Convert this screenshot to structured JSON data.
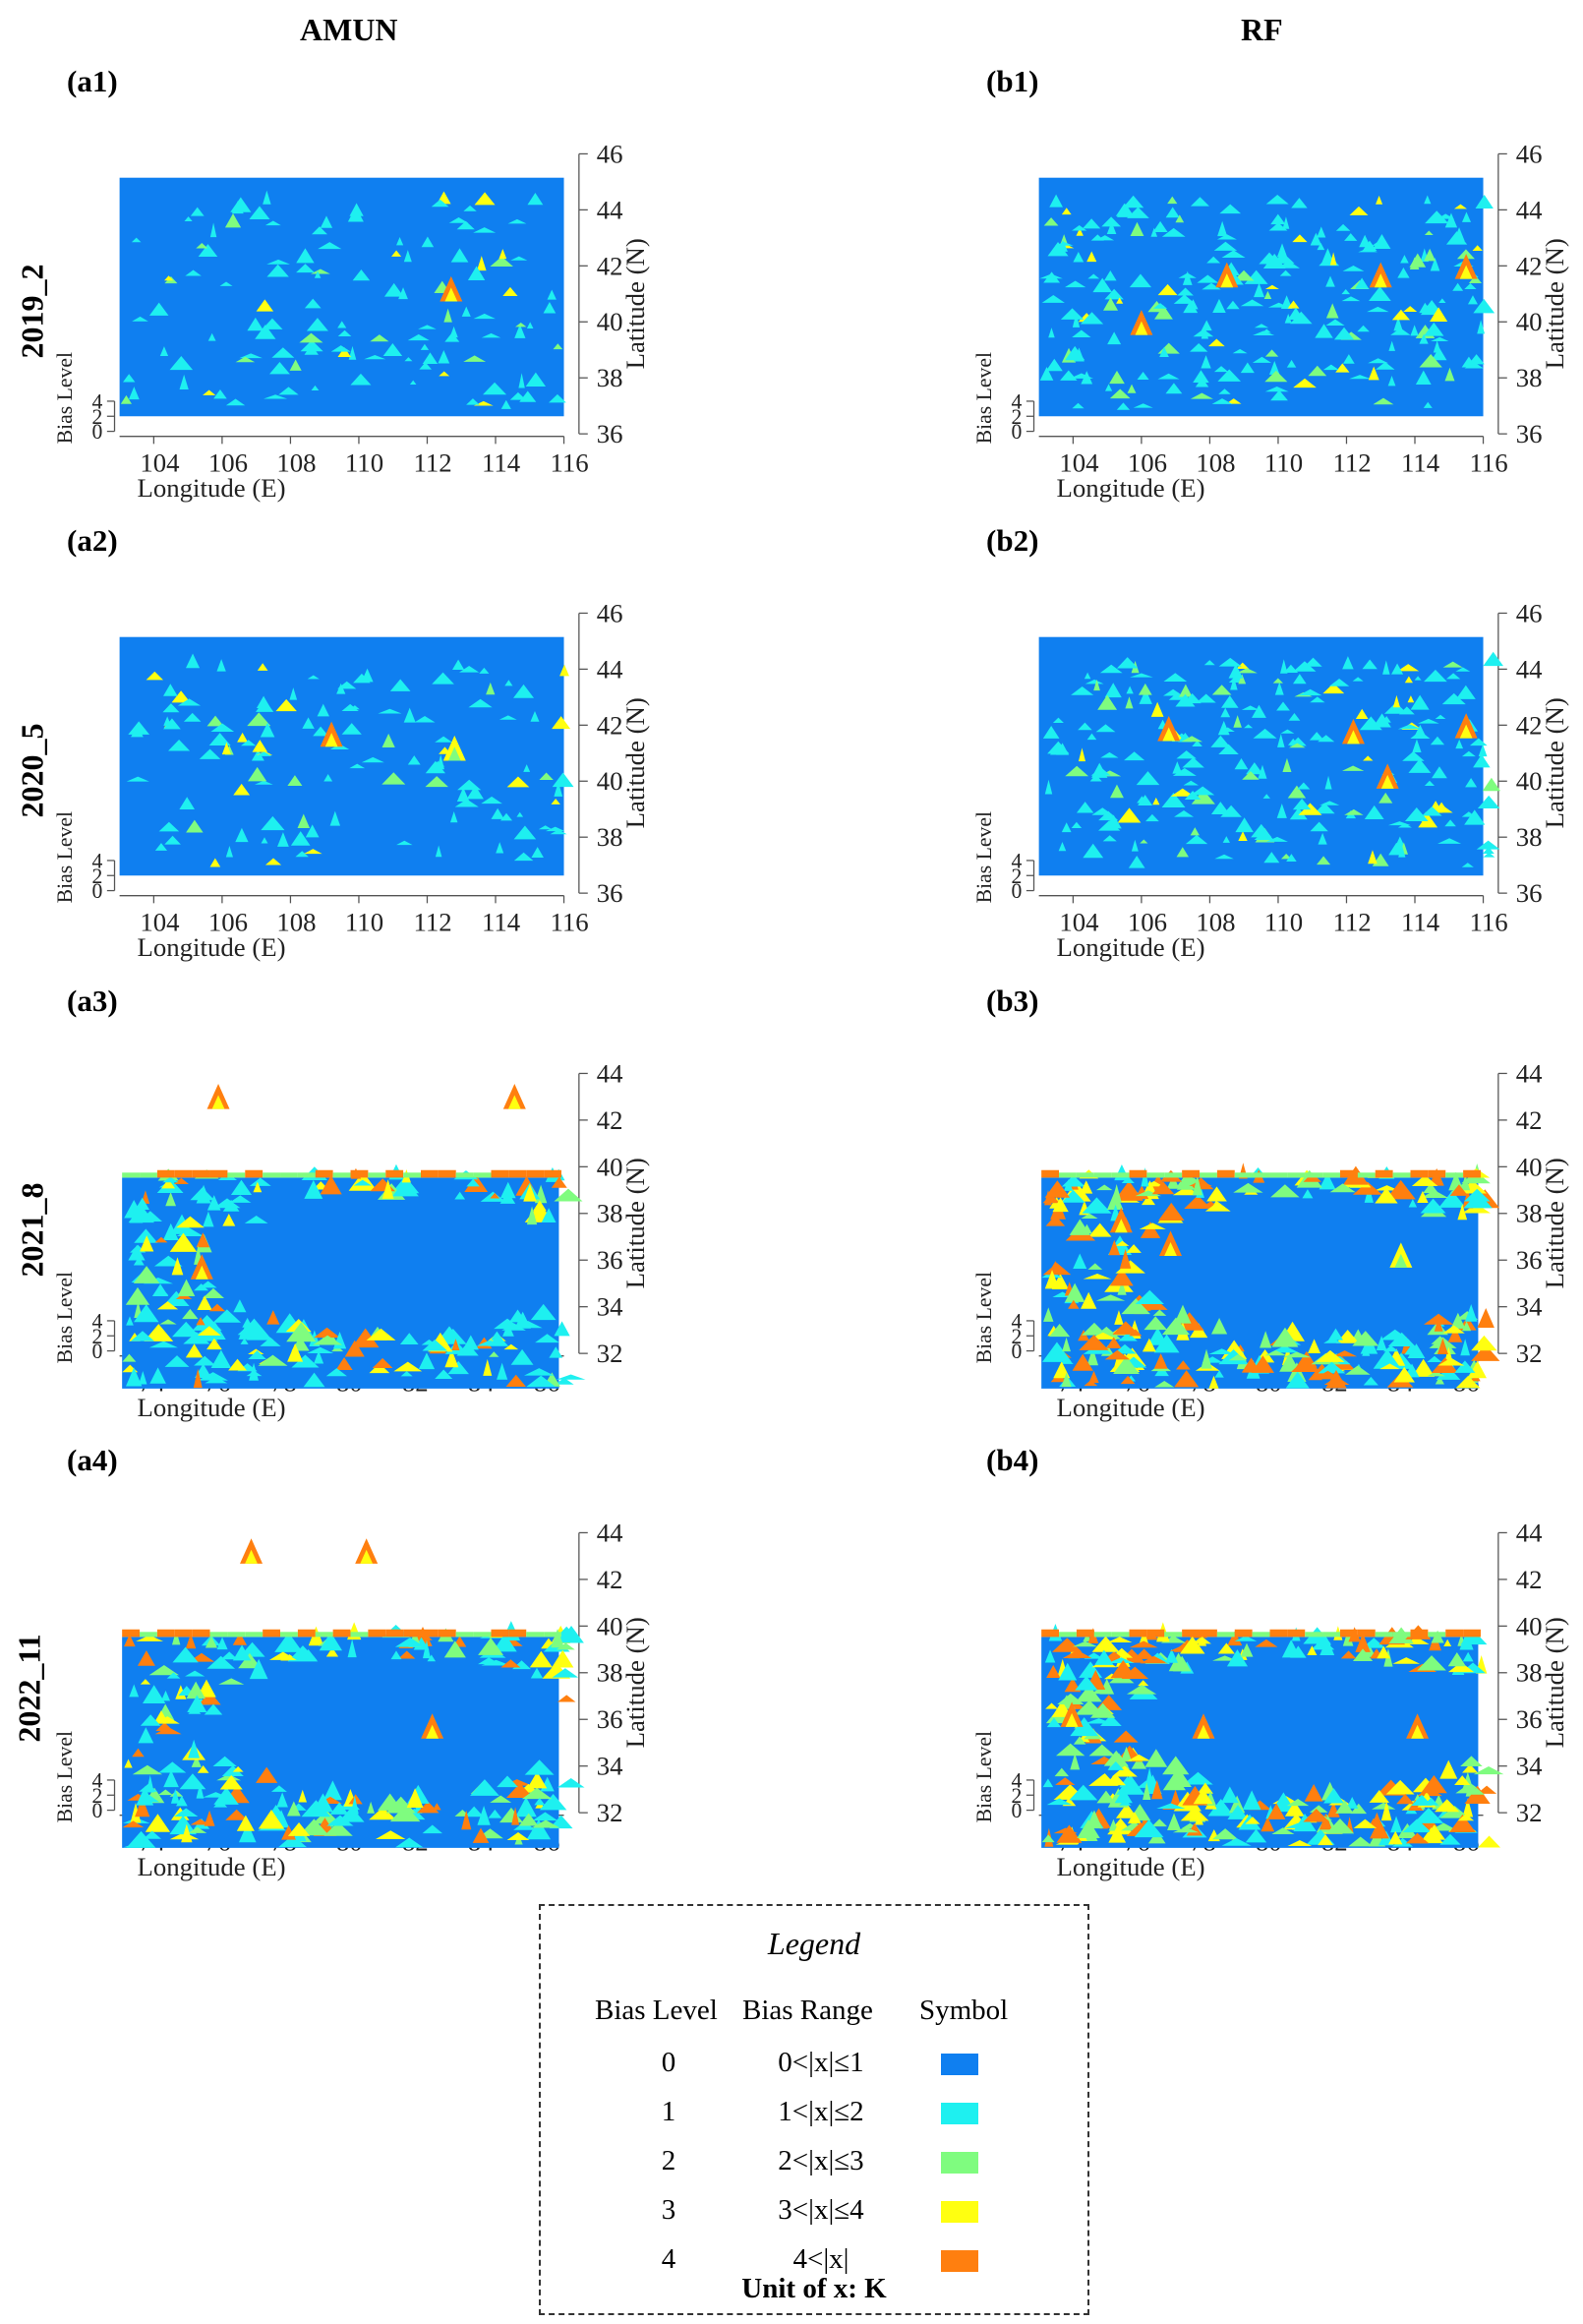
{
  "columns": [
    "AMUN",
    "RF"
  ],
  "rows": [
    "2019_2",
    "2020_5",
    "2021_8",
    "2022_11"
  ],
  "colors": {
    "level0": "#0f7ff0",
    "level1": "#1ef0f0",
    "level2": "#7ffc7f",
    "level3": "#ffff10",
    "level4": "#ff7f0f"
  },
  "axis_labels": {
    "x": "Longitude (E)",
    "y": "Latitude (N)",
    "z": "Bias Level"
  },
  "z_ticks": [
    "0",
    "2",
    "4"
  ],
  "chart_data": [
    {
      "type": "heatmap",
      "panel": "(a1)",
      "model": "AMUN",
      "case": "2019_2",
      "x_ticks": [
        "104",
        "106",
        "108",
        "110",
        "112",
        "114",
        "116"
      ],
      "y_ticks": [
        "36",
        "38",
        "40",
        "42",
        "44",
        "46"
      ],
      "xlim": [
        103,
        116
      ],
      "ylim": [
        36,
        46
      ],
      "dominant_level": 0,
      "hotspots": [
        {
          "lon": 112.7,
          "lat": 41.0,
          "level": 4
        }
      ]
    },
    {
      "type": "heatmap",
      "panel": "(b1)",
      "model": "RF",
      "case": "2019_2",
      "x_ticks": [
        "104",
        "106",
        "108",
        "110",
        "112",
        "114",
        "116"
      ],
      "y_ticks": [
        "36",
        "38",
        "40",
        "42",
        "44",
        "46"
      ],
      "xlim": [
        103,
        116
      ],
      "ylim": [
        36,
        46
      ],
      "dominant_level": 0,
      "hotspots": [
        {
          "lon": 106.0,
          "lat": 39.8,
          "level": 4
        },
        {
          "lon": 108.5,
          "lat": 41.5,
          "level": 4
        },
        {
          "lon": 113.0,
          "lat": 41.5,
          "level": 4
        },
        {
          "lon": 115.5,
          "lat": 41.8,
          "level": 4
        }
      ]
    },
    {
      "type": "heatmap",
      "panel": "(a2)",
      "model": "AMUN",
      "case": "2020_5",
      "x_ticks": [
        "104",
        "106",
        "108",
        "110",
        "112",
        "114",
        "116"
      ],
      "y_ticks": [
        "36",
        "38",
        "40",
        "42",
        "44",
        "46"
      ],
      "xlim": [
        103,
        116
      ],
      "ylim": [
        36,
        46
      ],
      "dominant_level": 0,
      "hotspots": [
        {
          "lon": 109.2,
          "lat": 41.5,
          "level": 4
        },
        {
          "lon": 112.8,
          "lat": 41.0,
          "level": 3
        }
      ]
    },
    {
      "type": "heatmap",
      "panel": "(b2)",
      "model": "RF",
      "case": "2020_5",
      "x_ticks": [
        "104",
        "106",
        "108",
        "110",
        "112",
        "114",
        "116"
      ],
      "y_ticks": [
        "36",
        "38",
        "40",
        "42",
        "44",
        "46"
      ],
      "xlim": [
        103,
        116
      ],
      "ylim": [
        36,
        46
      ],
      "dominant_level": 0,
      "hotspots": [
        {
          "lon": 106.8,
          "lat": 41.7,
          "level": 4
        },
        {
          "lon": 112.2,
          "lat": 41.6,
          "level": 4
        },
        {
          "lon": 113.2,
          "lat": 40.0,
          "level": 4
        },
        {
          "lon": 115.5,
          "lat": 41.8,
          "level": 4
        }
      ]
    },
    {
      "type": "heatmap",
      "panel": "(a3)",
      "model": "AMUN",
      "case": "2021_8",
      "x_ticks": [
        "74",
        "76",
        "78",
        "80",
        "82",
        "84",
        "86"
      ],
      "y_ticks": [
        "32",
        "34",
        "36",
        "38",
        "40",
        "42",
        "44"
      ],
      "xlim": [
        73,
        86.5
      ],
      "ylim": [
        32,
        44
      ],
      "dominant_level": 0,
      "hotspots": [
        {
          "lon": 76.0,
          "lat": 42.8,
          "level": 4
        },
        {
          "lon": 85.0,
          "lat": 42.8,
          "level": 4
        },
        {
          "lon": 75.5,
          "lat": 35.5,
          "level": 4
        }
      ]
    },
    {
      "type": "heatmap",
      "panel": "(b3)",
      "model": "RF",
      "case": "2021_8",
      "x_ticks": [
        "74",
        "76",
        "78",
        "80",
        "82",
        "84",
        "86"
      ],
      "y_ticks": [
        "32",
        "34",
        "36",
        "38",
        "40",
        "42",
        "44"
      ],
      "xlim": [
        73,
        86.5
      ],
      "ylim": [
        32,
        44
      ],
      "dominant_level": 0,
      "hotspots": [
        {
          "lon": 75.5,
          "lat": 37.5,
          "level": 4
        },
        {
          "lon": 77.0,
          "lat": 36.5,
          "level": 4
        },
        {
          "lon": 84.0,
          "lat": 36.0,
          "level": 3
        }
      ]
    },
    {
      "type": "heatmap",
      "panel": "(a4)",
      "model": "AMUN",
      "case": "2022_11",
      "x_ticks": [
        "74",
        "76",
        "78",
        "80",
        "82",
        "84",
        "86"
      ],
      "y_ticks": [
        "32",
        "34",
        "36",
        "38",
        "40",
        "42",
        "44"
      ],
      "xlim": [
        73,
        86.5
      ],
      "ylim": [
        32,
        44
      ],
      "dominant_level": 0,
      "hotspots": [
        {
          "lon": 77.0,
          "lat": 43.0,
          "level": 4
        },
        {
          "lon": 80.5,
          "lat": 43.0,
          "level": 4
        },
        {
          "lon": 82.5,
          "lat": 35.5,
          "level": 4
        }
      ]
    },
    {
      "type": "heatmap",
      "panel": "(b4)",
      "model": "RF",
      "case": "2022_11",
      "x_ticks": [
        "74",
        "76",
        "78",
        "80",
        "82",
        "84",
        "86"
      ],
      "y_ticks": [
        "32",
        "34",
        "36",
        "38",
        "40",
        "42",
        "44"
      ],
      "xlim": [
        73,
        86.5
      ],
      "ylim": [
        32,
        44
      ],
      "dominant_level": 0,
      "hotspots": [
        {
          "lon": 74.0,
          "lat": 36.0,
          "level": 4
        },
        {
          "lon": 78.0,
          "lat": 35.5,
          "level": 4
        },
        {
          "lon": 84.5,
          "lat": 35.5,
          "level": 4
        }
      ]
    }
  ],
  "legend": {
    "title": "Legend",
    "headers": [
      "Bias Level",
      "Bias Range",
      "Symbol"
    ],
    "items": [
      {
        "level": "0",
        "range": "0<|x|≤1",
        "color": "#0f7ff0"
      },
      {
        "level": "1",
        "range": "1<|x|≤2",
        "color": "#1ef0f0"
      },
      {
        "level": "2",
        "range": "2<|x|≤3",
        "color": "#7ffc7f"
      },
      {
        "level": "3",
        "range": "3<|x|≤4",
        "color": "#ffff10"
      },
      {
        "level": "4",
        "range": "4<|x|",
        "color": "#ff7f0f"
      }
    ],
    "unit": "Unit of x: K"
  }
}
